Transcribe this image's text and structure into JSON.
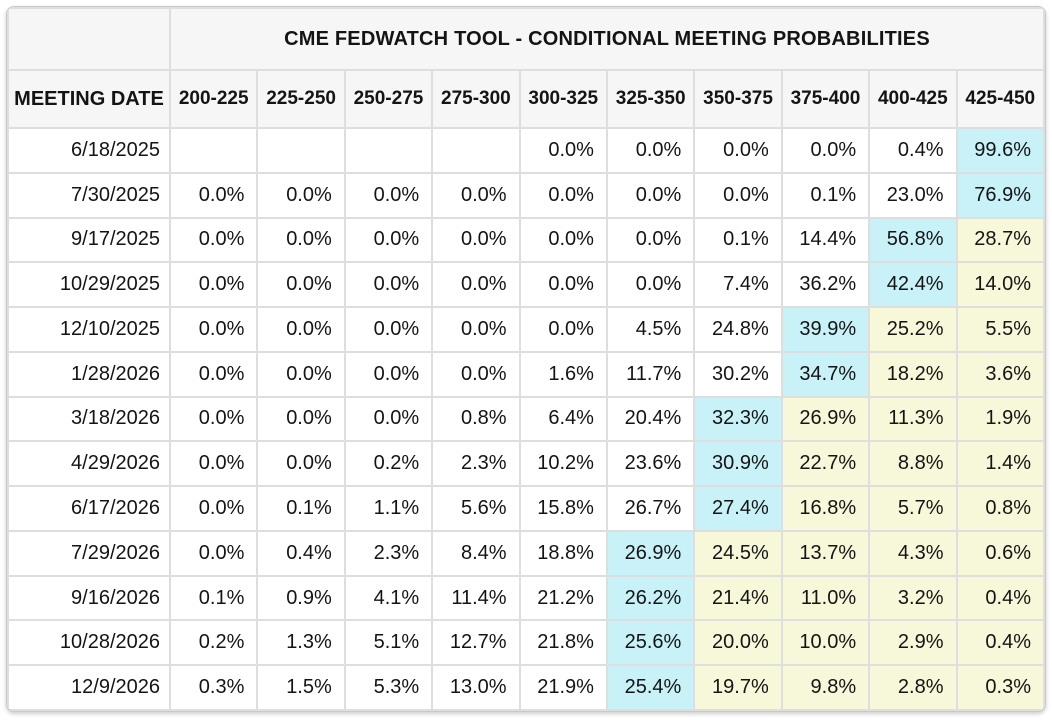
{
  "table": {
    "title": "CME FEDWATCH TOOL - CONDITIONAL MEETING PROBABILITIES",
    "date_column_header": "MEETING DATE",
    "rate_columns": [
      "200-225",
      "225-250",
      "250-275",
      "275-300",
      "300-325",
      "325-350",
      "350-375",
      "375-400",
      "400-425",
      "425-450"
    ],
    "rows": [
      {
        "date": "6/18/2025",
        "values": [
          "",
          "",
          "",
          "",
          "0.0%",
          "0.0%",
          "0.0%",
          "0.0%",
          "0.4%",
          "99.6%"
        ],
        "highlights": [
          "",
          "",
          "",
          "",
          "",
          "",
          "",
          "",
          "",
          "b"
        ]
      },
      {
        "date": "7/30/2025",
        "values": [
          "0.0%",
          "0.0%",
          "0.0%",
          "0.0%",
          "0.0%",
          "0.0%",
          "0.0%",
          "0.1%",
          "23.0%",
          "76.9%"
        ],
        "highlights": [
          "",
          "",
          "",
          "",
          "",
          "",
          "",
          "",
          "",
          "b"
        ]
      },
      {
        "date": "9/17/2025",
        "values": [
          "0.0%",
          "0.0%",
          "0.0%",
          "0.0%",
          "0.0%",
          "0.0%",
          "0.1%",
          "14.4%",
          "56.8%",
          "28.7%"
        ],
        "highlights": [
          "",
          "",
          "",
          "",
          "",
          "",
          "",
          "",
          "b",
          "y"
        ]
      },
      {
        "date": "10/29/2025",
        "values": [
          "0.0%",
          "0.0%",
          "0.0%",
          "0.0%",
          "0.0%",
          "0.0%",
          "7.4%",
          "36.2%",
          "42.4%",
          "14.0%"
        ],
        "highlights": [
          "",
          "",
          "",
          "",
          "",
          "",
          "",
          "",
          "b",
          "y"
        ]
      },
      {
        "date": "12/10/2025",
        "values": [
          "0.0%",
          "0.0%",
          "0.0%",
          "0.0%",
          "0.0%",
          "4.5%",
          "24.8%",
          "39.9%",
          "25.2%",
          "5.5%"
        ],
        "highlights": [
          "",
          "",
          "",
          "",
          "",
          "",
          "",
          "b",
          "y",
          "y"
        ]
      },
      {
        "date": "1/28/2026",
        "values": [
          "0.0%",
          "0.0%",
          "0.0%",
          "0.0%",
          "1.6%",
          "11.7%",
          "30.2%",
          "34.7%",
          "18.2%",
          "3.6%"
        ],
        "highlights": [
          "",
          "",
          "",
          "",
          "",
          "",
          "",
          "b",
          "y",
          "y"
        ]
      },
      {
        "date": "3/18/2026",
        "values": [
          "0.0%",
          "0.0%",
          "0.0%",
          "0.8%",
          "6.4%",
          "20.4%",
          "32.3%",
          "26.9%",
          "11.3%",
          "1.9%"
        ],
        "highlights": [
          "",
          "",
          "",
          "",
          "",
          "",
          "b",
          "y",
          "y",
          "y"
        ]
      },
      {
        "date": "4/29/2026",
        "values": [
          "0.0%",
          "0.0%",
          "0.2%",
          "2.3%",
          "10.2%",
          "23.6%",
          "30.9%",
          "22.7%",
          "8.8%",
          "1.4%"
        ],
        "highlights": [
          "",
          "",
          "",
          "",
          "",
          "",
          "b",
          "y",
          "y",
          "y"
        ]
      },
      {
        "date": "6/17/2026",
        "values": [
          "0.0%",
          "0.1%",
          "1.1%",
          "5.6%",
          "15.8%",
          "26.7%",
          "27.4%",
          "16.8%",
          "5.7%",
          "0.8%"
        ],
        "highlights": [
          "",
          "",
          "",
          "",
          "",
          "",
          "b",
          "y",
          "y",
          "y"
        ]
      },
      {
        "date": "7/29/2026",
        "values": [
          "0.0%",
          "0.4%",
          "2.3%",
          "8.4%",
          "18.8%",
          "26.9%",
          "24.5%",
          "13.7%",
          "4.3%",
          "0.6%"
        ],
        "highlights": [
          "",
          "",
          "",
          "",
          "",
          "b",
          "y",
          "y",
          "y",
          "y"
        ]
      },
      {
        "date": "9/16/2026",
        "values": [
          "0.1%",
          "0.9%",
          "4.1%",
          "11.4%",
          "21.2%",
          "26.2%",
          "21.4%",
          "11.0%",
          "3.2%",
          "0.4%"
        ],
        "highlights": [
          "",
          "",
          "",
          "",
          "",
          "b",
          "y",
          "y",
          "y",
          "y"
        ]
      },
      {
        "date": "10/28/2026",
        "values": [
          "0.2%",
          "1.3%",
          "5.1%",
          "12.7%",
          "21.8%",
          "25.6%",
          "20.0%",
          "10.0%",
          "2.9%",
          "0.4%"
        ],
        "highlights": [
          "",
          "",
          "",
          "",
          "",
          "b",
          "y",
          "y",
          "y",
          "y"
        ]
      },
      {
        "date": "12/9/2026",
        "values": [
          "0.3%",
          "1.5%",
          "5.3%",
          "13.0%",
          "21.9%",
          "25.4%",
          "19.7%",
          "9.8%",
          "2.8%",
          "0.3%"
        ],
        "highlights": [
          "",
          "",
          "",
          "",
          "",
          "b",
          "y",
          "y",
          "y",
          "y"
        ]
      }
    ]
  },
  "colors": {
    "highlight_max": "#c8f2f8",
    "highlight_tail": "#f7f7d9",
    "header_bg": "#f6f6f6",
    "grid_border": "#dedede",
    "text": "#141414"
  }
}
